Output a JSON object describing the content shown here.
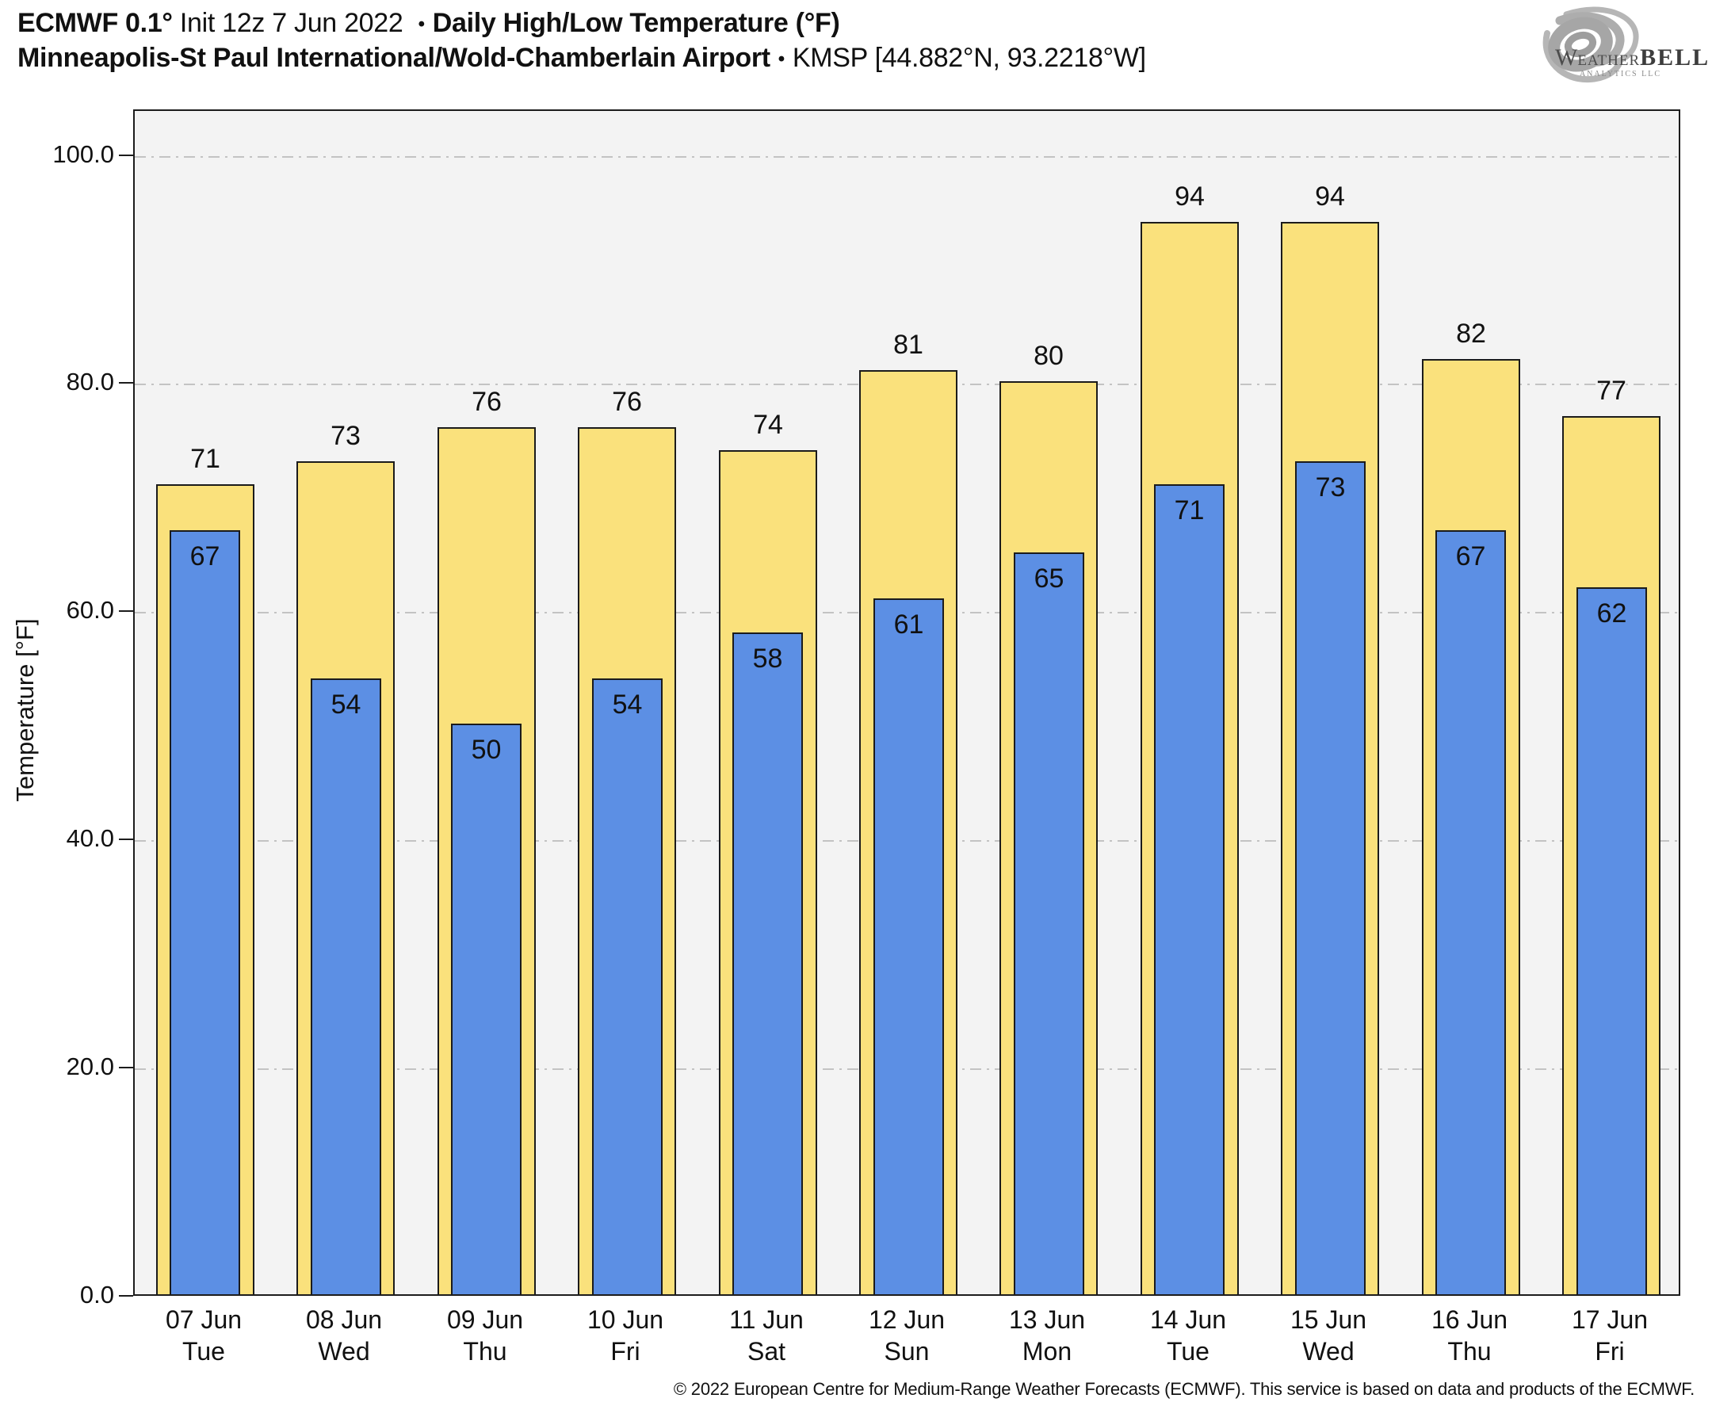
{
  "header": {
    "title_bold_left": "ECMWF 0.1°",
    "title_regular": " Init 12z 7 Jun 2022 ",
    "separator": "•",
    "title_bold_right": "Daily High/Low Temperature (°F)",
    "subtitle_bold": "Minneapolis-St Paul International/Wold-Chamberlain Airport",
    "subtitle_regular": "KMSP [44.882°N, 93.2218°W]"
  },
  "logo": {
    "brand_initial": "W",
    "brand_middle": "EATHER",
    "brand_suffix": "BELL",
    "tagline": "Analytics LLC"
  },
  "chart_data": {
    "type": "bar",
    "title": "ECMWF 0.1° Init 12z 7 Jun 2022 • Daily High/Low Temperature (°F)",
    "subtitle": "Minneapolis-St Paul International/Wold-Chamberlain Airport • KMSP [44.882°N, 93.2218°W]",
    "xlabel": "",
    "ylabel": "Temperature [°F]",
    "ylim": [
      0,
      104
    ],
    "yticks": [
      0,
      20,
      40,
      60,
      80,
      100
    ],
    "ytick_labels": [
      "0.0",
      "20.0",
      "40.0",
      "60.0",
      "80.0",
      "100.0"
    ],
    "grid": true,
    "legend_position": "none",
    "categories": [
      {
        "date": "07 Jun",
        "day": "Tue"
      },
      {
        "date": "08 Jun",
        "day": "Wed"
      },
      {
        "date": "09 Jun",
        "day": "Thu"
      },
      {
        "date": "10 Jun",
        "day": "Fri"
      },
      {
        "date": "11 Jun",
        "day": "Sat"
      },
      {
        "date": "12 Jun",
        "day": "Sun"
      },
      {
        "date": "13 Jun",
        "day": "Mon"
      },
      {
        "date": "14 Jun",
        "day": "Tue"
      },
      {
        "date": "15 Jun",
        "day": "Wed"
      },
      {
        "date": "16 Jun",
        "day": "Thu"
      },
      {
        "date": "17 Jun",
        "day": "Fri"
      }
    ],
    "series": [
      {
        "name": "Daily High",
        "color": "#fae17c",
        "values": [
          71,
          73,
          76,
          76,
          74,
          81,
          80,
          94,
          94,
          82,
          77
        ]
      },
      {
        "name": "Daily Low",
        "color": "#5c8fe4",
        "values": [
          67,
          54,
          50,
          54,
          58,
          61,
          65,
          71,
          73,
          67,
          62
        ]
      }
    ]
  },
  "footer": {
    "copyright": "© 2022 European Centre for Medium-Range Weather Forecasts (ECMWF). This service is based on data and products of the ECMWF."
  }
}
